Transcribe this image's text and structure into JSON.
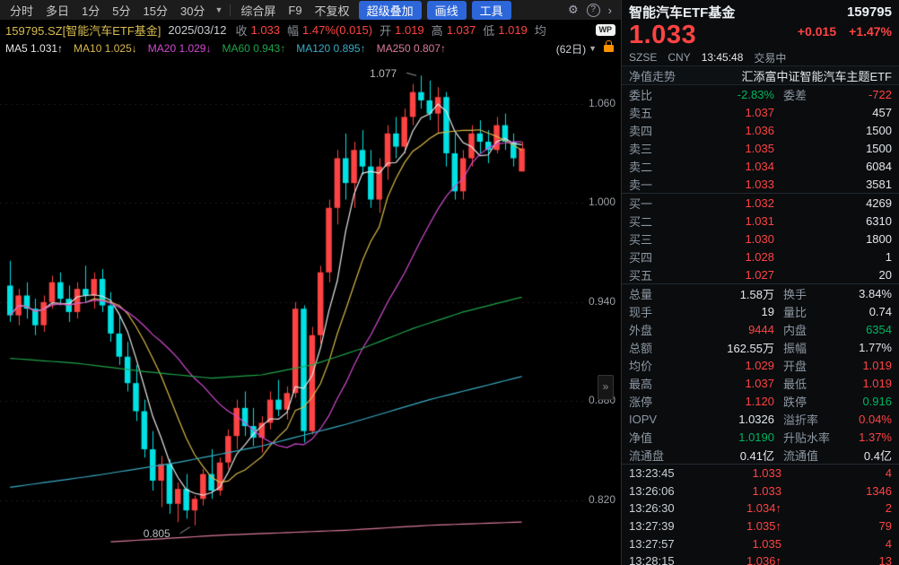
{
  "colors": {
    "r": "#ff4343",
    "g": "#00b45f",
    "w": "#e4e7ea",
    "y": "#d8bc4e",
    "blue": "#2c66d9",
    "orange": "#ff9100",
    "label": "#8d98a3"
  },
  "toolbar": {
    "period_items": [
      "分时",
      "多日",
      "1分",
      "5分",
      "15分",
      "30分"
    ],
    "dropdown_arrow": "▼",
    "plain_items": [
      "综合屏",
      "F9",
      "不复权"
    ],
    "highlight_items": [
      "超级叠加",
      "画线",
      "工具"
    ],
    "icon_glyphs": {
      "gear": "⚙",
      "help": "?",
      "chevron": "›"
    }
  },
  "info_bar": {
    "symbol": "159795.SZ[智能汽车ETF基金]",
    "date": "2025/03/12",
    "fields": [
      {
        "label": "收",
        "value": "1.033",
        "color": "r"
      },
      {
        "label": "幅",
        "value": "1.47%(0.015)",
        "color": "r"
      },
      {
        "label": "开",
        "value": "1.019",
        "color": "r"
      },
      {
        "label": "高",
        "value": "1.037",
        "color": "r"
      },
      {
        "label": "低",
        "value": "1.019",
        "color": "r"
      },
      {
        "label": "均",
        "value": "",
        "color": "r"
      }
    ],
    "badge": "WP"
  },
  "ma_bar": {
    "items": [
      {
        "label": "MA5",
        "value": "1.031↑",
        "color": "#e6e6e6"
      },
      {
        "label": "MA10",
        "value": "1.025↓",
        "color": "#d9b84a"
      },
      {
        "label": "MA20",
        "value": "1.029↓",
        "color": "#d24ad2"
      },
      {
        "label": "MA60",
        "value": "0.943↑",
        "color": "#1fa44a"
      },
      {
        "label": "MA120",
        "value": "0.895↑",
        "color": "#3aabc4"
      },
      {
        "label": "MA250",
        "value": "0.807↑",
        "color": "#d97a99"
      }
    ],
    "range_label": "(62日)",
    "dropdown_arrow": "▼"
  },
  "expander": {
    "glyph": "»"
  },
  "chart": {
    "type": "candlestick",
    "up_color": "#fd4343",
    "down_color": "#00e2e4",
    "price_max": 1.088,
    "price_min": 0.781,
    "y_axis": [
      {
        "label": "1.060",
        "value": 1.06
      },
      {
        "label": "1.000",
        "value": 1.0
      },
      {
        "label": "0.940",
        "value": 0.94
      },
      {
        "label": "0.880",
        "value": 0.88
      },
      {
        "label": "0.820",
        "value": 0.82
      }
    ],
    "high_annotation": {
      "text": "1.077",
      "value": 1.077,
      "bar": 49
    },
    "low_annotation": {
      "text": "0.805",
      "value": 0.805,
      "bar": 22
    },
    "candles": [
      [
        0.95,
        0.965,
        0.928,
        0.932
      ],
      [
        0.932,
        0.948,
        0.926,
        0.944
      ],
      [
        0.944,
        0.952,
        0.93,
        0.936
      ],
      [
        0.936,
        0.942,
        0.92,
        0.926
      ],
      [
        0.926,
        0.944,
        0.922,
        0.94
      ],
      [
        0.94,
        0.956,
        0.936,
        0.952
      ],
      [
        0.952,
        0.958,
        0.938,
        0.942
      ],
      [
        0.942,
        0.95,
        0.928,
        0.934
      ],
      [
        0.934,
        0.952,
        0.93,
        0.948
      ],
      [
        0.948,
        0.962,
        0.94,
        0.944
      ],
      [
        0.944,
        0.958,
        0.936,
        0.954
      ],
      [
        0.954,
        0.96,
        0.934,
        0.938
      ],
      [
        0.938,
        0.946,
        0.916,
        0.921
      ],
      [
        0.921,
        0.932,
        0.902,
        0.907
      ],
      [
        0.907,
        0.916,
        0.886,
        0.891
      ],
      [
        0.891,
        0.902,
        0.868,
        0.874
      ],
      [
        0.874,
        0.881,
        0.846,
        0.851
      ],
      [
        0.851,
        0.862,
        0.826,
        0.832
      ],
      [
        0.832,
        0.847,
        0.816,
        0.842
      ],
      [
        0.842,
        0.845,
        0.812,
        0.818
      ],
      [
        0.818,
        0.831,
        0.807,
        0.827
      ],
      [
        0.827,
        0.836,
        0.809,
        0.814
      ],
      [
        0.814,
        0.823,
        0.805,
        0.821
      ],
      [
        0.821,
        0.839,
        0.817,
        0.836
      ],
      [
        0.836,
        0.851,
        0.821,
        0.826
      ],
      [
        0.826,
        0.846,
        0.823,
        0.843
      ],
      [
        0.843,
        0.863,
        0.839,
        0.859
      ],
      [
        0.859,
        0.881,
        0.851,
        0.876
      ],
      [
        0.876,
        0.886,
        0.859,
        0.865
      ],
      [
        0.865,
        0.876,
        0.853,
        0.858
      ],
      [
        0.858,
        0.871,
        0.849,
        0.867
      ],
      [
        0.867,
        0.886,
        0.863,
        0.881
      ],
      [
        0.881,
        0.893,
        0.871,
        0.875
      ],
      [
        0.875,
        0.889,
        0.869,
        0.885
      ],
      [
        0.885,
        0.94,
        0.882,
        0.936
      ],
      [
        0.936,
        0.938,
        0.855,
        0.862
      ],
      [
        0.862,
        0.925,
        0.86,
        0.92
      ],
      [
        0.92,
        0.962,
        0.915,
        0.958
      ],
      [
        0.958,
        1.002,
        0.952,
        0.997
      ],
      [
        0.997,
        1.032,
        0.987,
        1.027
      ],
      [
        1.027,
        1.042,
        1.002,
        1.012
      ],
      [
        1.012,
        1.037,
        0.997,
        1.032
      ],
      [
        1.032,
        1.044,
        1.017,
        1.022
      ],
      [
        1.022,
        1.032,
        0.997,
        1.002
      ],
      [
        1.002,
        1.027,
        0.994,
        1.022
      ],
      [
        1.022,
        1.047,
        1.014,
        1.042
      ],
      [
        1.042,
        1.052,
        1.027,
        1.034
      ],
      [
        1.034,
        1.057,
        1.03,
        1.052
      ],
      [
        1.052,
        1.072,
        1.047,
        1.067
      ],
      [
        1.067,
        1.077,
        1.057,
        1.062
      ],
      [
        1.062,
        1.074,
        1.05,
        1.054
      ],
      [
        1.054,
        1.07,
        1.042,
        1.064
      ],
      [
        1.064,
        1.067,
        1.022,
        1.03
      ],
      [
        1.03,
        1.042,
        1.002,
        1.007
      ],
      [
        1.007,
        1.032,
        1.002,
        1.027
      ],
      [
        1.027,
        1.047,
        1.022,
        1.042
      ],
      [
        1.042,
        1.05,
        1.03,
        1.037
      ],
      [
        1.037,
        1.044,
        1.024,
        1.032
      ],
      [
        1.032,
        1.052,
        1.03,
        1.047
      ],
      [
        1.047,
        1.054,
        1.032,
        1.037
      ],
      [
        1.037,
        1.042,
        1.022,
        1.027
      ],
      [
        1.019,
        1.037,
        1.019,
        1.033
      ]
    ],
    "ma_overlays": [
      {
        "name": "MA5",
        "window": 5,
        "color": "#e6e6e6"
      },
      {
        "name": "MA10",
        "window": 10,
        "color": "#d9b84a"
      },
      {
        "name": "MA20",
        "window": 20,
        "color": "#d24ad2"
      },
      {
        "name": "MA60",
        "color": "#1fa44a",
        "points": [
          [
            0,
            0.906
          ],
          [
            8,
            0.903
          ],
          [
            16,
            0.898
          ],
          [
            24,
            0.894
          ],
          [
            30,
            0.896
          ],
          [
            36,
            0.902
          ],
          [
            42,
            0.912
          ],
          [
            48,
            0.924
          ],
          [
            54,
            0.934
          ],
          [
            61,
            0.943
          ]
        ]
      },
      {
        "name": "MA120",
        "color": "#3aabc4",
        "points": [
          [
            0,
            0.828
          ],
          [
            10,
            0.835
          ],
          [
            20,
            0.843
          ],
          [
            30,
            0.853
          ],
          [
            40,
            0.866
          ],
          [
            50,
            0.881
          ],
          [
            61,
            0.895
          ]
        ]
      },
      {
        "name": "MA250",
        "color": "#d97a99",
        "points": [
          [
            12,
            0.795
          ],
          [
            25,
            0.799
          ],
          [
            40,
            0.802
          ],
          [
            50,
            0.805
          ],
          [
            61,
            0.807
          ]
        ]
      }
    ]
  },
  "panel": {
    "title": "智能汽车ETF基金",
    "code": "159795",
    "price": "1.033",
    "change": "+0.015",
    "change_pct": "+1.47%",
    "exchange": "SZSE",
    "currency": "CNY",
    "time": "13:45:48",
    "status": "交易中",
    "nav_label": "净值走势",
    "nav_name": "汇添富中证智能汽车主题ETF",
    "weibi": {
      "label": "委比",
      "value": "-2.83%",
      "label2": "委差",
      "value2": "-722"
    },
    "asks": [
      {
        "label": "卖五",
        "price": "1.037",
        "vol": "457"
      },
      {
        "label": "卖四",
        "price": "1.036",
        "vol": "1500"
      },
      {
        "label": "卖三",
        "price": "1.035",
        "vol": "1500"
      },
      {
        "label": "卖二",
        "price": "1.034",
        "vol": "6084"
      },
      {
        "label": "卖一",
        "price": "1.033",
        "vol": "3581"
      }
    ],
    "bids": [
      {
        "label": "买一",
        "price": "1.032",
        "vol": "4269"
      },
      {
        "label": "买二",
        "price": "1.031",
        "vol": "6310"
      },
      {
        "label": "买三",
        "price": "1.030",
        "vol": "1800"
      },
      {
        "label": "买四",
        "price": "1.028",
        "vol": "1"
      },
      {
        "label": "买五",
        "price": "1.027",
        "vol": "20"
      }
    ],
    "stats": [
      {
        "l1": "总量",
        "v1": "1.58万",
        "c1": "w",
        "l2": "换手",
        "v2": "3.84%",
        "c2": "w"
      },
      {
        "l1": "现手",
        "v1": "19",
        "c1": "w",
        "l2": "量比",
        "v2": "0.74",
        "c2": "w"
      },
      {
        "l1": "外盘",
        "v1": "9444",
        "c1": "r",
        "l2": "内盘",
        "v2": "6354",
        "c2": "g"
      },
      {
        "l1": "总额",
        "v1": "162.55万",
        "c1": "w",
        "l2": "振幅",
        "v2": "1.77%",
        "c2": "w"
      },
      {
        "l1": "均价",
        "v1": "1.029",
        "c1": "r",
        "l2": "开盘",
        "v2": "1.019",
        "c2": "r"
      },
      {
        "l1": "最高",
        "v1": "1.037",
        "c1": "r",
        "l2": "最低",
        "v2": "1.019",
        "c2": "r"
      },
      {
        "l1": "涨停",
        "v1": "1.120",
        "c1": "r",
        "l2": "跌停",
        "v2": "0.916",
        "c2": "g"
      },
      {
        "l1": "IOPV",
        "v1": "1.0326",
        "c1": "w",
        "l2": "溢折率",
        "v2": "0.04%",
        "c2": "r"
      },
      {
        "l1": "净值",
        "v1": "1.0190",
        "c1": "g",
        "l2": "升贴水率",
        "v2": "1.37%",
        "c2": "r"
      },
      {
        "l1": "流通盘",
        "v1": "0.41亿",
        "c1": "w",
        "l2": "流通值",
        "v2": "0.4亿",
        "c2": "w"
      }
    ],
    "ticks": [
      {
        "time": "13:23:45",
        "price": "1.033",
        "arrow": "",
        "vol": "4"
      },
      {
        "time": "13:26:06",
        "price": "1.033",
        "arrow": "",
        "vol": "1346"
      },
      {
        "time": "13:26:30",
        "price": "1.034",
        "arrow": "↑",
        "vol": "2"
      },
      {
        "time": "13:27:39",
        "price": "1.035",
        "arrow": "↑",
        "vol": "79"
      },
      {
        "time": "13:27:57",
        "price": "1.035",
        "arrow": "",
        "vol": "4"
      },
      {
        "time": "13:28:15",
        "price": "1.036",
        "arrow": "↑",
        "vol": "13"
      }
    ]
  }
}
